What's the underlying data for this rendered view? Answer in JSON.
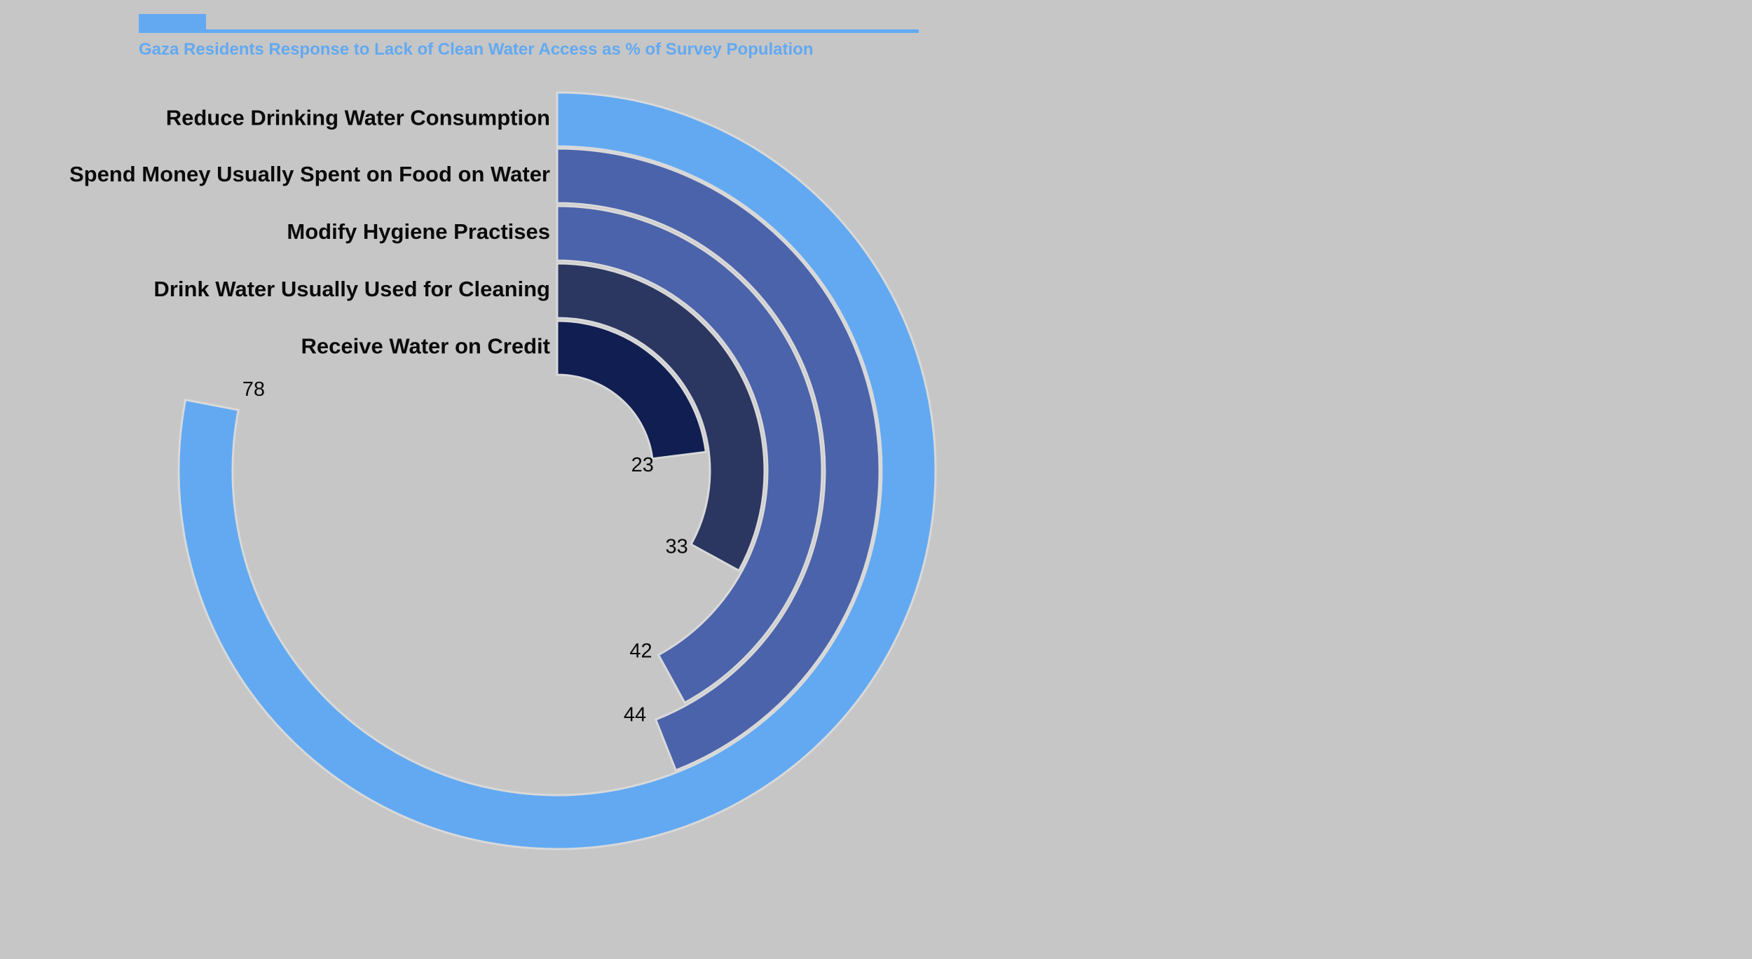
{
  "chart_data": {
    "type": "radial-bar",
    "title": "Gaza Residents Response to Lack of Clean Water Access as % of Survey Population",
    "max": 100,
    "categories": [
      "Reduce Drinking Water Consumption",
      "Spend Money Usually Spent on Food on Water",
      "Modify Hygiene Practises",
      "Drink Water Usually Used for Cleaning",
      "Receive Water on Credit"
    ],
    "values": [
      78,
      44,
      42,
      33,
      23
    ],
    "colors": [
      "#62a9f2",
      "#4b63aa",
      "#4b63aa",
      "#2b3761",
      "#101e52"
    ],
    "background": "#c6c6c6",
    "accent": "#62a9f2"
  }
}
